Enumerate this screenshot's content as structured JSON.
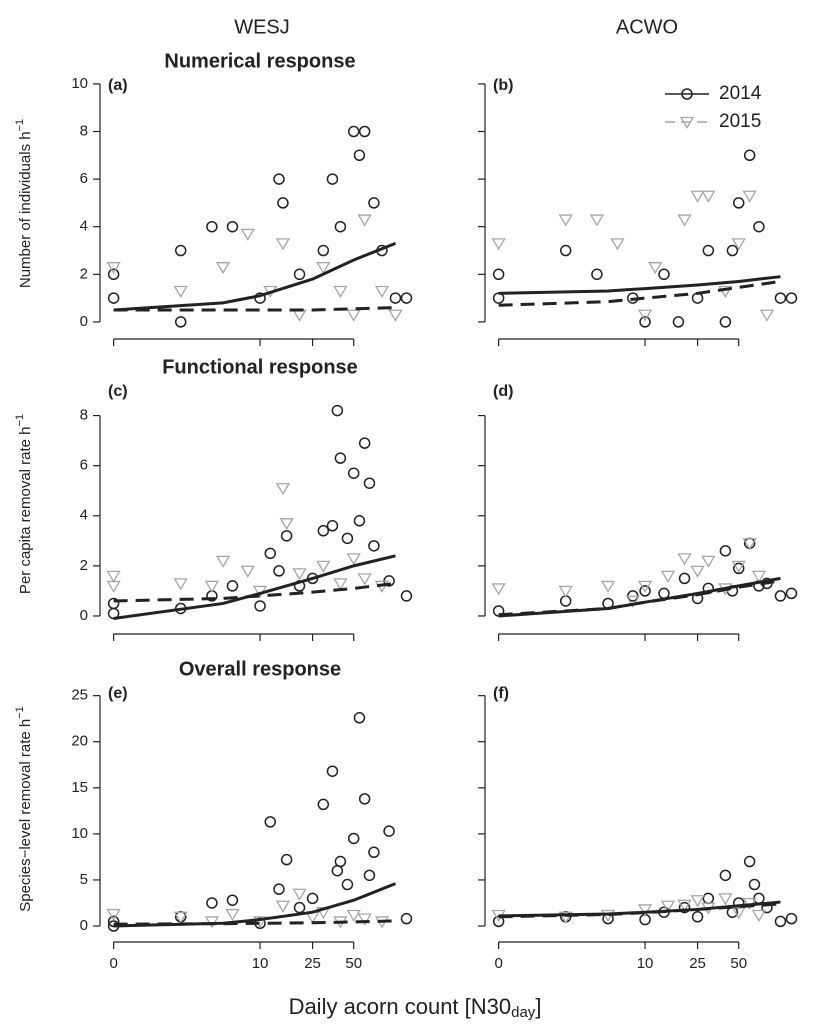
{
  "columns": [
    "WESJ",
    "ACWO"
  ],
  "xlabel": {
    "text": "Daily acorn count [N30",
    "sub": "day",
    "end": "]"
  },
  "chart_data": [
    {
      "type": "scatter",
      "label": "(a)",
      "title": "Numerical response",
      "ylabel": {
        "text": "Number of individuals h",
        "sup": "−1"
      },
      "xscale": "log1p",
      "xlim": [
        -0.2,
        150
      ],
      "xticks": [
        0,
        10,
        25,
        50
      ],
      "xtick_labels": false,
      "ylim": [
        -0.55,
        10.5
      ],
      "yticks": [
        0,
        2,
        4,
        6,
        8,
        10
      ],
      "ytick_labels": true,
      "series": [
        {
          "name": "2014",
          "color": "#222222",
          "marker": "circle",
          "x": [
            0,
            0,
            2,
            2,
            4,
            6,
            10,
            14,
            15,
            20,
            30,
            35,
            40,
            50,
            55,
            60,
            70,
            80,
            100,
            120
          ],
          "values": [
            2,
            1,
            3,
            0,
            4,
            4,
            1,
            6,
            5,
            2,
            3,
            6,
            4,
            8,
            7,
            8,
            5,
            3,
            1,
            1
          ]
        },
        {
          "name": "2015",
          "color": "#a6a6a6",
          "marker": "triangle",
          "x": [
            0,
            2,
            5,
            8,
            12,
            15,
            20,
            30,
            40,
            50,
            60,
            80,
            100
          ],
          "values": [
            2.3,
            1.3,
            2.3,
            3.7,
            1.3,
            3.3,
            0.3,
            2.3,
            1.3,
            0.3,
            4.3,
            1.3,
            0.3
          ]
        }
      ],
      "fits": [
        {
          "color": "#222222",
          "dashed": false,
          "x": [
            0,
            5,
            10,
            25,
            50,
            100
          ],
          "values": [
            0.5,
            0.8,
            1.1,
            1.8,
            2.6,
            3.3
          ]
        },
        {
          "color": "#222222",
          "dashed": true,
          "x": [
            0,
            5,
            10,
            25,
            50,
            100
          ],
          "values": [
            0.5,
            0.5,
            0.5,
            0.5,
            0.55,
            0.6
          ]
        }
      ]
    },
    {
      "type": "scatter",
      "label": "(b)",
      "legend": "top-right",
      "xscale": "log1p",
      "xlim": [
        -0.2,
        150
      ],
      "xticks": [
        0,
        10,
        25,
        50
      ],
      "xtick_labels": false,
      "ylim": [
        -0.55,
        10.5
      ],
      "yticks": [
        0,
        2,
        4,
        6,
        8,
        10
      ],
      "ytick_labels": false,
      "series": [
        {
          "name": "2014",
          "color": "#222222",
          "marker": "circle",
          "x": [
            0,
            0,
            2,
            4,
            8,
            10,
            14,
            18,
            25,
            30,
            40,
            45,
            50,
            60,
            70,
            100,
            120
          ],
          "values": [
            2,
            1,
            3,
            2,
            1,
            0,
            2,
            0,
            1,
            3,
            0,
            3,
            5,
            7,
            4,
            1,
            1
          ]
        },
        {
          "name": "2015",
          "color": "#a6a6a6",
          "marker": "triangle",
          "x": [
            0,
            2,
            4,
            6,
            10,
            12,
            20,
            25,
            30,
            40,
            50,
            60,
            80
          ],
          "values": [
            3.3,
            4.3,
            4.3,
            3.3,
            0.3,
            2.3,
            4.3,
            5.3,
            5.3,
            1.3,
            3.3,
            5.3,
            0.3
          ]
        }
      ],
      "fits": [
        {
          "color": "#222222",
          "dashed": false,
          "x": [
            0,
            5,
            10,
            25,
            50,
            100
          ],
          "values": [
            1.2,
            1.3,
            1.4,
            1.55,
            1.7,
            1.9
          ]
        },
        {
          "color": "#222222",
          "dashed": true,
          "x": [
            0,
            5,
            10,
            25,
            50,
            100
          ],
          "values": [
            0.7,
            0.85,
            1.0,
            1.2,
            1.45,
            1.7
          ]
        }
      ]
    },
    {
      "type": "scatter",
      "label": "(c)",
      "title": "Functional response",
      "ylabel": {
        "text": "Per capita removal rate h",
        "sup": "−1"
      },
      "xscale": "log1p",
      "xlim": [
        -0.2,
        150
      ],
      "xticks": [
        0,
        10,
        25,
        50
      ],
      "xtick_labels": false,
      "ylim": [
        -0.56,
        9.5
      ],
      "yticks": [
        0,
        2,
        4,
        6,
        8
      ],
      "ytick_labels": true,
      "series": [
        {
          "name": "2014",
          "color": "#222222",
          "marker": "circle",
          "x": [
            0,
            0,
            2,
            4,
            6,
            10,
            12,
            14,
            16,
            20,
            25,
            30,
            35,
            38,
            40,
            45,
            50,
            55,
            60,
            65,
            70,
            90,
            120
          ],
          "values": [
            0.1,
            0.5,
            0.3,
            0.8,
            1.2,
            0.4,
            2.5,
            1.8,
            3.2,
            1.2,
            1.5,
            3.4,
            3.6,
            8.2,
            6.3,
            3.1,
            5.7,
            3.8,
            6.9,
            5.3,
            2.8,
            1.4,
            0.8
          ]
        },
        {
          "name": "2015",
          "color": "#a6a6a6",
          "marker": "triangle",
          "x": [
            0,
            0,
            2,
            4,
            5,
            8,
            10,
            15,
            16,
            20,
            30,
            40,
            50,
            60,
            80
          ],
          "values": [
            1.6,
            1.2,
            1.3,
            1.2,
            2.2,
            1.8,
            1.0,
            5.1,
            3.7,
            1.7,
            2.0,
            1.3,
            2.3,
            1.5,
            1.2
          ]
        }
      ],
      "fits": [
        {
          "color": "#222222",
          "dashed": false,
          "x": [
            0,
            5,
            10,
            25,
            50,
            100
          ],
          "values": [
            -0.1,
            0.5,
            0.9,
            1.5,
            2.0,
            2.4
          ]
        },
        {
          "color": "#222222",
          "dashed": true,
          "x": [
            0,
            5,
            10,
            25,
            50,
            100
          ],
          "values": [
            0.6,
            0.7,
            0.8,
            0.95,
            1.1,
            1.3
          ]
        }
      ]
    },
    {
      "type": "scatter",
      "label": "(d)",
      "xscale": "log1p",
      "xlim": [
        -0.2,
        150
      ],
      "xticks": [
        0,
        10,
        25,
        50
      ],
      "xtick_labels": false,
      "ylim": [
        -0.56,
        9.5
      ],
      "yticks": [
        0,
        2,
        4,
        6,
        8
      ],
      "ytick_labels": false,
      "series": [
        {
          "name": "2014",
          "color": "#222222",
          "marker": "circle",
          "x": [
            0,
            2,
            5,
            8,
            10,
            14,
            20,
            25,
            30,
            40,
            45,
            50,
            60,
            70,
            80,
            100,
            120
          ],
          "values": [
            0.2,
            0.6,
            0.5,
            0.8,
            1.0,
            0.9,
            1.5,
            0.7,
            1.1,
            2.6,
            1.0,
            1.9,
            2.9,
            1.2,
            1.3,
            0.8,
            0.9
          ]
        },
        {
          "name": "2015",
          "color": "#a6a6a6",
          "marker": "triangle",
          "x": [
            0,
            2,
            5,
            8,
            10,
            15,
            20,
            25,
            30,
            40,
            50,
            60,
            70
          ],
          "values": [
            1.1,
            1.0,
            1.2,
            0.6,
            1.2,
            1.6,
            2.3,
            1.8,
            2.2,
            1.1,
            2.0,
            2.9,
            1.6
          ]
        }
      ],
      "fits": [
        {
          "color": "#222222",
          "dashed": false,
          "x": [
            0,
            5,
            10,
            25,
            50,
            100
          ],
          "values": [
            0,
            0.3,
            0.55,
            0.9,
            1.2,
            1.5
          ]
        },
        {
          "color": "#222222",
          "dashed": true,
          "x": [
            0,
            5,
            10,
            25,
            50,
            100
          ],
          "values": [
            0.05,
            0.3,
            0.55,
            0.85,
            1.15,
            1.4
          ]
        }
      ]
    },
    {
      "type": "scatter",
      "label": "(e)",
      "title": "Overall response",
      "ylabel": {
        "text": "Species−level removal rate h",
        "sup": "−1"
      },
      "xscale": "log1p",
      "xlim": [
        -0.2,
        150
      ],
      "xticks": [
        0,
        10,
        25,
        50
      ],
      "xtick_labels": true,
      "ylim": [
        -1.3,
        26.7
      ],
      "yticks": [
        0,
        5,
        10,
        15,
        20,
        25
      ],
      "ytick_labels": true,
      "series": [
        {
          "name": "2014",
          "color": "#222222",
          "marker": "circle",
          "x": [
            0,
            0,
            2,
            4,
            6,
            10,
            12,
            14,
            16,
            20,
            25,
            30,
            35,
            38,
            40,
            45,
            50,
            55,
            60,
            65,
            70,
            90,
            120
          ],
          "values": [
            0.5,
            0,
            1,
            2.5,
            2.8,
            0.3,
            11.3,
            4,
            7.2,
            2,
            3,
            13.2,
            16.8,
            6,
            7,
            4.5,
            9.5,
            22.6,
            13.8,
            5.5,
            8,
            10.3,
            0.8
          ]
        },
        {
          "name": "2015",
          "color": "#a6a6a6",
          "marker": "triangle",
          "x": [
            0,
            2,
            4,
            6,
            10,
            15,
            20,
            25,
            30,
            40,
            50,
            60,
            80
          ],
          "values": [
            1.3,
            1.0,
            0.5,
            1.3,
            0.5,
            2.2,
            3.5,
            1.0,
            1.5,
            0.5,
            1.2,
            0.8,
            0.5
          ]
        }
      ],
      "fits": [
        {
          "color": "#222222",
          "dashed": false,
          "x": [
            0,
            5,
            10,
            25,
            50,
            100
          ],
          "values": [
            0,
            0.3,
            0.7,
            1.5,
            2.8,
            4.6
          ]
        },
        {
          "color": "#222222",
          "dashed": true,
          "x": [
            0,
            5,
            10,
            25,
            50,
            100
          ],
          "values": [
            0.2,
            0.25,
            0.3,
            0.35,
            0.45,
            0.55
          ]
        }
      ]
    },
    {
      "type": "scatter",
      "label": "(f)",
      "xscale": "log1p",
      "xlim": [
        -0.2,
        150
      ],
      "xticks": [
        0,
        10,
        25,
        50
      ],
      "xtick_labels": true,
      "ylim": [
        -1.3,
        26.7
      ],
      "yticks": [
        0,
        5,
        10,
        15,
        20,
        25
      ],
      "ytick_labels": false,
      "series": [
        {
          "name": "2014",
          "color": "#222222",
          "marker": "circle",
          "x": [
            0,
            2,
            5,
            10,
            14,
            20,
            25,
            30,
            40,
            45,
            50,
            60,
            65,
            70,
            80,
            100,
            120
          ],
          "values": [
            0.5,
            1,
            0.8,
            0.7,
            1.5,
            2,
            1,
            3,
            5.5,
            1.5,
            2.5,
            7,
            4.5,
            3,
            2,
            0.5,
            0.8
          ]
        },
        {
          "name": "2015",
          "color": "#a6a6a6",
          "marker": "triangle",
          "x": [
            0,
            2,
            5,
            10,
            15,
            20,
            25,
            30,
            40,
            50,
            60,
            70
          ],
          "values": [
            1.2,
            1.0,
            1.2,
            1.8,
            2.2,
            2.3,
            2.8,
            2.0,
            3.0,
            1.5,
            2.5,
            1.2
          ]
        }
      ],
      "fits": [
        {
          "color": "#222222",
          "dashed": false,
          "x": [
            0,
            5,
            10,
            25,
            50,
            100
          ],
          "values": [
            1.1,
            1.3,
            1.5,
            1.8,
            2.2,
            2.6
          ]
        },
        {
          "color": "#222222",
          "dashed": true,
          "x": [
            0,
            5,
            10,
            25,
            50,
            100
          ],
          "values": [
            1.0,
            1.25,
            1.45,
            1.8,
            2.1,
            2.4
          ]
        }
      ]
    }
  ]
}
